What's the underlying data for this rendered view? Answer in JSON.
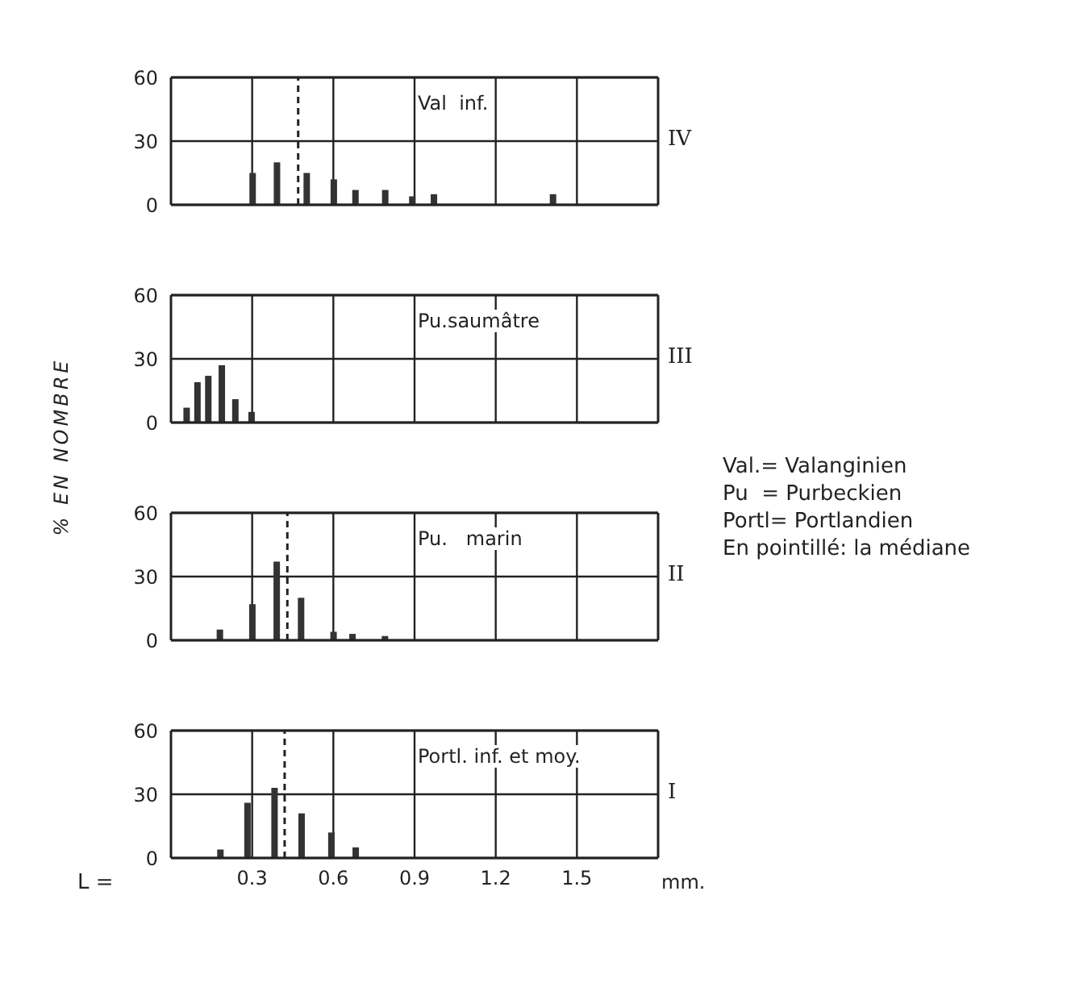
{
  "chart_data": [
    {
      "type": "bar",
      "x": [
        0.3,
        0.39,
        0.5,
        0.6,
        0.68,
        0.79,
        0.89,
        0.97,
        1.41
      ],
      "values": [
        15,
        20,
        15,
        12,
        7,
        7,
        4,
        5,
        5
      ],
      "color": "#333333",
      "xlim": [
        0,
        1.8
      ],
      "ylim": [
        0,
        60
      ],
      "yticks": [
        0,
        30,
        60
      ],
      "xticks": [
        0.3,
        0.6,
        0.9,
        1.2,
        1.5
      ],
      "grid": true,
      "tick_labels": "y",
      "ref_lines": [
        {
          "axis": "x",
          "value": 0.47,
          "line_style": "dashed"
        }
      ],
      "annotations": [
        "Val  inf.",
        "IV"
      ]
    },
    {
      "type": "bar",
      "x": [
        0.06,
        0.1,
        0.14,
        0.19,
        0.24,
        0.3
      ],
      "values": [
        7,
        19,
        22,
        27,
        11,
        5
      ],
      "color": "#333333",
      "xlim": [
        0,
        1.8
      ],
      "ylim": [
        0,
        60
      ],
      "yticks": [
        0,
        30,
        60
      ],
      "xticks": [
        0.3,
        0.6,
        0.9,
        1.2,
        1.5
      ],
      "grid": true,
      "tick_labels": "y",
      "annotations": [
        "Pu.saumâtre",
        "III",
        "Val.= Valanginien",
        "Pu  = Purbeckien",
        "Portl= Portlandien",
        "En pointillé: la médiane"
      ]
    },
    {
      "type": "bar",
      "x": [
        0.18,
        0.3,
        0.39,
        0.48,
        0.6,
        0.67,
        0.79
      ],
      "values": [
        5,
        17,
        37,
        20,
        4,
        3,
        2
      ],
      "color": "#333333",
      "xlim": [
        0,
        1.8
      ],
      "ylim": [
        0,
        60
      ],
      "yticks": [
        0,
        30,
        60
      ],
      "xticks": [
        0.3,
        0.6,
        0.9,
        1.2,
        1.5
      ],
      "grid": true,
      "tick_labels": "y",
      "ylabel": "% EN NOMBRE",
      "ref_lines": [
        {
          "axis": "x",
          "value": 0.43,
          "line_style": "dashed"
        }
      ],
      "annotations": [
        "Pu.   marin",
        "II"
      ]
    },
    {
      "type": "bar",
      "x": [
        0.18,
        0.28,
        0.38,
        0.48,
        0.59,
        0.68
      ],
      "values": [
        4,
        26,
        33,
        21,
        12,
        5
      ],
      "color": "#333333",
      "xlim": [
        0,
        1.8
      ],
      "ylim": [
        0,
        60
      ],
      "yticks": [
        0,
        30,
        60
      ],
      "xticks": [
        0.3,
        0.6,
        0.9,
        1.2,
        1.5
      ],
      "grid": true,
      "xlabel": "mm.",
      "ref_lines": [
        {
          "axis": "x",
          "value": 0.42,
          "line_style": "dashed"
        }
      ],
      "annotations": [
        "Portl. inf. et moy.",
        "I",
        "L ="
      ]
    }
  ]
}
